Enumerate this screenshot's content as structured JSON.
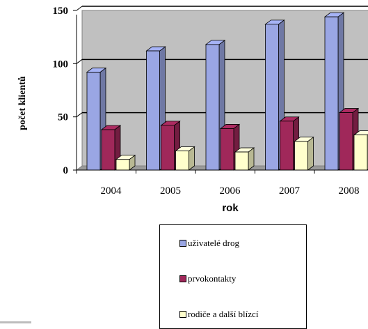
{
  "chart_data": {
    "type": "bar",
    "xlabel": "rok",
    "ylabel": "počet klientů",
    "categories": [
      "2004",
      "2005",
      "2006",
      "2007",
      "2008"
    ],
    "ylim": [
      0,
      150
    ],
    "yticks": [
      0,
      50,
      100,
      150
    ],
    "grid": true,
    "legend_position": "bottom",
    "series": [
      {
        "name": "uživatelé drog",
        "color": "#9aa6e4",
        "values": [
          92,
          112,
          118,
          137,
          144
        ]
      },
      {
        "name": "prvokontakty",
        "color": "#a0285a",
        "values": [
          38,
          42,
          39,
          46,
          54
        ]
      },
      {
        "name": "rodiče a další blízcí",
        "color": "#ffffcc",
        "values": [
          10,
          18,
          17,
          27,
          33
        ]
      }
    ]
  }
}
